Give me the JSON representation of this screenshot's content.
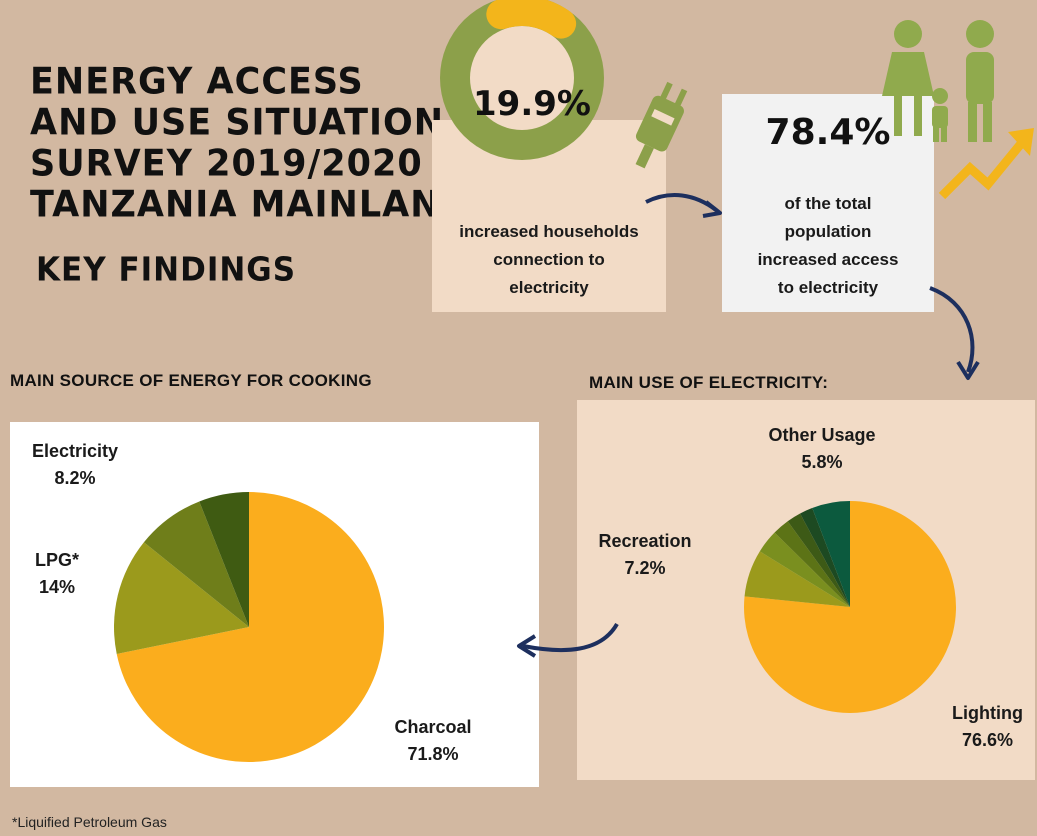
{
  "title": {
    "lines": [
      "ENERGY ACCESS",
      "AND USE SITUATION",
      "SURVEY 2019/2020",
      "TANZANIA MAINLAND"
    ],
    "subtitle": "KEY FINDINGS"
  },
  "stats": {
    "household": {
      "value": "19.9%",
      "fraction": 0.199,
      "text": [
        "increased households",
        "connection to",
        "electricity"
      ]
    },
    "population": {
      "value": "78.4%",
      "text": [
        "of the total",
        "population",
        "increased access",
        "to electricity"
      ]
    }
  },
  "colors": {
    "background": "#d2b8a1",
    "card": "#f2dbc6",
    "donut_green": "#8ca04a",
    "accent_yellow": "#f3b51b",
    "arrow": "#1d2f5e",
    "people": "#90aa4d"
  },
  "chart_data": [
    {
      "type": "pie",
      "title": "MAIN SOURCE OF ENERGY FOR COOKING",
      "slices": [
        {
          "label": "Charcoal",
          "value": 71.8,
          "display": "71.8%",
          "color": "#fbad1d"
        },
        {
          "label": "LPG*",
          "value": 14,
          "display": "14%",
          "color": "#9b9a1c"
        },
        {
          "label": "Electricity",
          "value": 8.2,
          "display": "8.2%",
          "color": "#6f7e1a"
        },
        {
          "label": "",
          "value": 6.0,
          "display": "",
          "color": "#3f5b12"
        }
      ],
      "footnote": "*Liquified Petroleum Gas"
    },
    {
      "type": "pie",
      "title": "MAIN USE OF ELECTRICITY:",
      "slices": [
        {
          "label": "Lighting",
          "value": 76.6,
          "display": "76.6%",
          "color": "#fbad1d"
        },
        {
          "label": "Recreation",
          "value": 7.2,
          "display": "7.2%",
          "color": "#9b9a1c"
        },
        {
          "label": "",
          "value": 3.6,
          "display": "",
          "color": "#7a8f1f"
        },
        {
          "label": "",
          "value": 2.6,
          "display": "",
          "color": "#5c7316"
        },
        {
          "label": "",
          "value": 2.2,
          "display": "",
          "color": "#3d5a16"
        },
        {
          "label": "",
          "value": 2.0,
          "display": "",
          "color": "#1d4a22"
        },
        {
          "label": "Other Usage",
          "value": 5.8,
          "display": "5.8%",
          "color": "#0c5a3e"
        }
      ]
    }
  ]
}
